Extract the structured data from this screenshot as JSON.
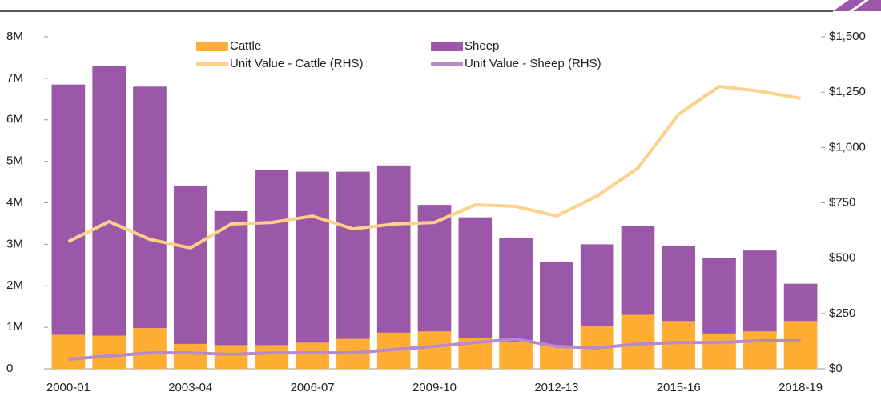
{
  "chart_data": {
    "type": "bar",
    "categories": [
      "2000-01",
      null,
      null,
      "2003-04",
      null,
      null,
      "2006-07",
      null,
      null,
      "2009-10",
      null,
      null,
      "2012-13",
      null,
      null,
      "2015-16",
      null,
      null,
      "2018-19"
    ],
    "stacked": true,
    "series": [
      {
        "name": "Cattle",
        "type": "bar",
        "color": "#ffad33",
        "values": [
          820000,
          800000,
          980000,
          600000,
          570000,
          570000,
          630000,
          720000,
          870000,
          900000,
          750000,
          650000,
          550000,
          1020000,
          1300000,
          1150000,
          850000,
          900000,
          1150000
        ]
      },
      {
        "name": "Sheep",
        "type": "bar",
        "color": "#9b57a8",
        "values": [
          6030000,
          6500000,
          5820000,
          3800000,
          3230000,
          4230000,
          4120000,
          4030000,
          4030000,
          3050000,
          2900000,
          2500000,
          2030000,
          1980000,
          2150000,
          1820000,
          1820000,
          1950000,
          900000
        ]
      },
      {
        "name": "Unit Value - Cattle (RHS)",
        "type": "line",
        "axis": "y2",
        "color": "#ffd08c",
        "values": [
          575,
          665,
          585,
          546,
          654,
          661,
          690,
          632,
          654,
          661,
          741,
          734,
          690,
          781,
          907,
          1150,
          1276,
          1254,
          1222
        ]
      },
      {
        "name": "Unit Value - Sheep (RHS)",
        "type": "line",
        "axis": "y2",
        "color": "#b98ac8",
        "values": [
          43,
          58,
          72,
          72,
          65,
          72,
          72,
          72,
          87,
          101,
          119,
          134,
          101,
          94,
          112,
          119,
          119,
          127,
          127
        ]
      }
    ],
    "ylim": [
      0,
      8000000
    ],
    "yticks": [
      0,
      {
        "value": 1000000,
        "label": "1M"
      },
      {
        "value": 2000000,
        "label": "2M"
      },
      {
        "value": 3000000,
        "label": "3M"
      },
      {
        "value": 4000000,
        "label": "4M"
      },
      {
        "value": 5000000,
        "label": "5M"
      },
      {
        "value": 6000000,
        "label": "6M"
      },
      {
        "value": 7000000,
        "label": "7M"
      },
      {
        "value": 8000000,
        "label": "8M"
      }
    ],
    "y2lim": [
      0,
      1500
    ],
    "y2ticks": [
      {
        "value": 0,
        "label": "$0"
      },
      {
        "value": 250,
        "label": "$250"
      },
      {
        "value": 500,
        "label": "$500"
      },
      {
        "value": 750,
        "label": "$750"
      },
      {
        "value": 1000,
        "label": "$1,000"
      },
      {
        "value": 1250,
        "label": "$1,250"
      },
      {
        "value": 1500,
        "label": "$1,500"
      }
    ],
    "grid": false,
    "legend": "top"
  }
}
